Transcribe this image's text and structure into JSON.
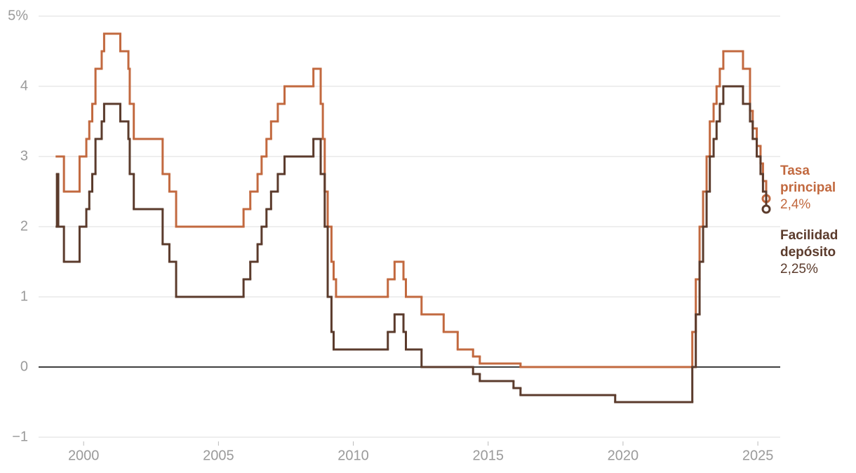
{
  "chart_data": {
    "type": "step",
    "xlim": [
      1998.33,
      2025.83
    ],
    "xticks": [
      2000,
      2005,
      2010,
      2015,
      2020,
      2025
    ],
    "ylim": [
      -1,
      5
    ],
    "yticks": [
      {
        "value": -1,
        "label": "−1"
      },
      0,
      1,
      2,
      3,
      4,
      {
        "value": 5,
        "label": "5%"
      }
    ],
    "grid": true,
    "series": [
      {
        "name": "Tasa principal",
        "color": "#c2693f",
        "end_label": "2,4%",
        "x": [
          1999.0,
          1999.27,
          1999.85,
          2000.1,
          2000.21,
          2000.32,
          2000.44,
          2000.67,
          2000.76,
          2001.36,
          2001.66,
          2001.71,
          2001.86,
          2002.93,
          2003.18,
          2003.43,
          2005.93,
          2006.18,
          2006.45,
          2006.6,
          2006.78,
          2006.95,
          2007.2,
          2007.45,
          2008.52,
          2008.79,
          2008.87,
          2008.94,
          2009.05,
          2009.19,
          2009.27,
          2009.36,
          2011.28,
          2011.53,
          2011.86,
          2011.95,
          2012.53,
          2013.35,
          2013.87,
          2014.44,
          2014.69,
          2016.2,
          2022.57,
          2022.7,
          2022.84,
          2022.97,
          2023.1,
          2023.22,
          2023.36,
          2023.47,
          2023.59,
          2023.72,
          2024.45,
          2024.71,
          2024.81,
          2024.96,
          2025.1,
          2025.19,
          2025.31
        ],
        "values": [
          3.0,
          2.5,
          3.0,
          3.25,
          3.5,
          3.75,
          4.25,
          4.5,
          4.75,
          4.5,
          4.25,
          3.75,
          3.25,
          2.75,
          2.5,
          2.0,
          2.25,
          2.5,
          2.75,
          3.0,
          3.25,
          3.5,
          3.75,
          4.0,
          4.25,
          3.75,
          3.25,
          2.5,
          2.0,
          1.5,
          1.25,
          1.0,
          1.25,
          1.5,
          1.25,
          1.0,
          0.75,
          0.5,
          0.25,
          0.15,
          0.05,
          0.0,
          0.5,
          1.25,
          2.0,
          2.5,
          3.0,
          3.5,
          3.75,
          4.0,
          4.25,
          4.5,
          4.25,
          3.65,
          3.4,
          3.15,
          2.9,
          2.65,
          2.4
        ]
      },
      {
        "name": "Facilidad depósito",
        "color": "#5b3b2c",
        "end_label": "2,25%",
        "x": [
          1999.0,
          1999.01,
          1999.06,
          1999.27,
          1999.85,
          2000.1,
          2000.21,
          2000.32,
          2000.44,
          2000.67,
          2000.76,
          2001.36,
          2001.66,
          2001.71,
          2001.86,
          2002.93,
          2003.18,
          2003.43,
          2005.93,
          2006.18,
          2006.45,
          2006.6,
          2006.78,
          2006.95,
          2007.2,
          2007.45,
          2008.52,
          2008.79,
          2008.94,
          2009.05,
          2009.19,
          2009.27,
          2011.28,
          2011.53,
          2011.86,
          2011.95,
          2012.53,
          2014.44,
          2014.69,
          2015.94,
          2016.2,
          2019.71,
          2022.57,
          2022.7,
          2022.84,
          2022.97,
          2023.1,
          2023.22,
          2023.36,
          2023.47,
          2023.59,
          2023.72,
          2024.45,
          2024.71,
          2024.81,
          2024.96,
          2025.1,
          2025.19,
          2025.31
        ],
        "values": [
          2.0,
          2.75,
          2.0,
          1.5,
          2.0,
          2.25,
          2.5,
          2.75,
          3.25,
          3.5,
          3.75,
          3.5,
          3.25,
          2.75,
          2.25,
          1.75,
          1.5,
          1.0,
          1.25,
          1.5,
          1.75,
          2.0,
          2.25,
          2.5,
          2.75,
          3.0,
          3.25,
          2.75,
          2.0,
          1.0,
          0.5,
          0.25,
          0.5,
          0.75,
          0.5,
          0.25,
          0.0,
          -0.1,
          -0.2,
          -0.3,
          -0.4,
          -0.5,
          0.0,
          0.75,
          1.5,
          2.0,
          2.5,
          3.0,
          3.25,
          3.5,
          3.75,
          4.0,
          3.75,
          3.5,
          3.25,
          3.0,
          2.75,
          2.5,
          2.25
        ]
      }
    ]
  }
}
